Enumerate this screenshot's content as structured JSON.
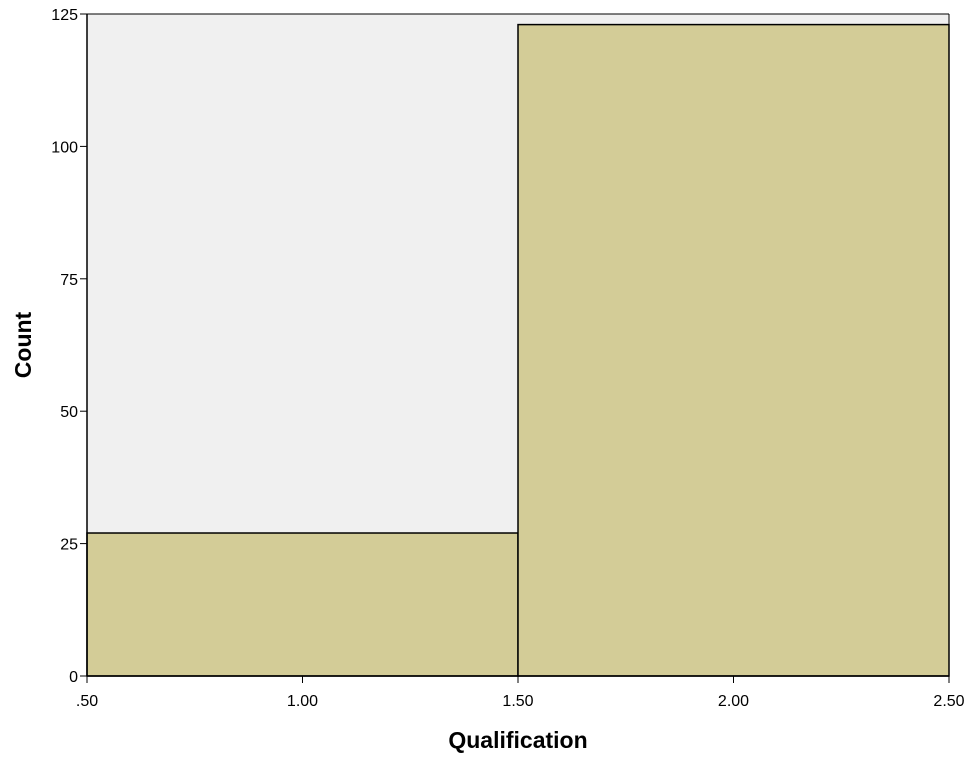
{
  "chart_data": {
    "type": "histogram",
    "xlabel": "Qualification",
    "ylabel": "Count",
    "xlim": [
      0.5,
      2.5
    ],
    "ylim": [
      0,
      125
    ],
    "x_ticks": [
      {
        "value": 0.5,
        "label": ".50"
      },
      {
        "value": 1.0,
        "label": "1.00"
      },
      {
        "value": 1.5,
        "label": "1.50"
      },
      {
        "value": 2.0,
        "label": "2.00"
      },
      {
        "value": 2.5,
        "label": "2.50"
      }
    ],
    "y_ticks": [
      {
        "value": 0,
        "label": "0"
      },
      {
        "value": 25,
        "label": "25"
      },
      {
        "value": 50,
        "label": "50"
      },
      {
        "value": 75,
        "label": "75"
      },
      {
        "value": 100,
        "label": "100"
      },
      {
        "value": 125,
        "label": "125"
      }
    ],
    "bins": [
      {
        "start": 0.5,
        "end": 1.5,
        "count": 27
      },
      {
        "start": 1.5,
        "end": 2.5,
        "count": 123
      }
    ],
    "grid": false,
    "colors": {
      "bar_fill": "#d3cc97",
      "bar_stroke": "#000000",
      "plot_background": "#f0f0f0"
    }
  }
}
